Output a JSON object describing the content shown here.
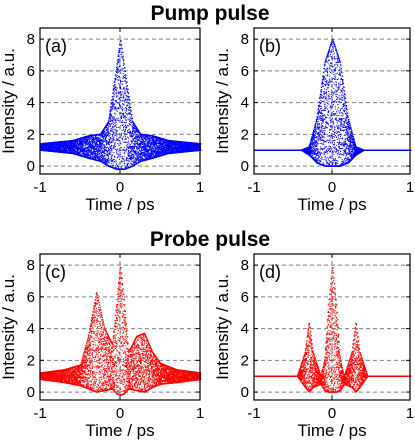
{
  "section_titles": {
    "top": "Pump pulse",
    "bottom": "Probe pulse"
  },
  "colors": {
    "pump": "#0000ff",
    "probe": "#ff0000",
    "grid": "#808080"
  },
  "chart_data": [
    {
      "type": "scatter",
      "panel": "(a)",
      "section": "Pump pulse",
      "xlabel": "Time / ps",
      "ylabel": "Intensity / a.u.",
      "xlim": [
        -1,
        1
      ],
      "ylim": [
        -0.5,
        8.7
      ],
      "xticks": [
        "-1",
        "0",
        "1"
      ],
      "yticks": [
        "0",
        "2",
        "4",
        "6",
        "8"
      ],
      "grid": "dashed horizontal at y ticks, dashed vertical at x = 0",
      "series": [
        {
          "color": "#0000ff",
          "envelope": {
            "x": [
              -1.0,
              -0.8,
              -0.6,
              -0.4,
              -0.25,
              -0.15,
              -0.05,
              0.0,
              0.05,
              0.15,
              0.25,
              0.4,
              0.6,
              0.8,
              1.0
            ],
            "upper": [
              1.4,
              1.5,
              1.6,
              1.9,
              2.0,
              2.8,
              6.2,
              8.0,
              6.2,
              2.8,
              2.0,
              1.9,
              1.6,
              1.5,
              1.4
            ],
            "lower": [
              1.0,
              0.9,
              0.8,
              0.5,
              0.3,
              0.0,
              -0.2,
              -0.2,
              -0.2,
              0.0,
              0.3,
              0.5,
              0.8,
              0.9,
              1.0
            ]
          }
        }
      ]
    },
    {
      "type": "scatter",
      "panel": "(b)",
      "section": "Pump pulse",
      "xlabel": "Time / ps",
      "ylabel": "Intensity / a.u.",
      "xlim": [
        -1,
        1
      ],
      "ylim": [
        -0.5,
        8.7
      ],
      "xticks": [
        "-1",
        "0",
        "1"
      ],
      "yticks": [
        "0",
        "2",
        "4",
        "6",
        "8"
      ],
      "grid": "dashed horizontal at y ticks, dashed vertical at x = 0",
      "series": [
        {
          "color": "#0000ff",
          "envelope": {
            "x": [
              -1.0,
              -0.4,
              -0.3,
              -0.2,
              -0.1,
              0.0,
              0.1,
              0.2,
              0.3,
              0.4,
              1.0
            ],
            "upper": [
              1.0,
              1.0,
              1.2,
              3.0,
              6.5,
              8.0,
              6.5,
              3.0,
              1.2,
              1.0,
              1.0
            ],
            "lower": [
              1.0,
              1.0,
              0.7,
              0.2,
              0.0,
              0.0,
              0.0,
              0.2,
              0.7,
              1.0,
              1.0
            ]
          }
        }
      ]
    },
    {
      "type": "scatter",
      "panel": "(c)",
      "section": "Probe pulse",
      "xlabel": "Time / ps",
      "ylabel": "Intensity / a.u.",
      "xlim": [
        -1,
        1
      ],
      "ylim": [
        -0.5,
        8.7
      ],
      "xticks": [
        "-1",
        "0",
        "1"
      ],
      "yticks": [
        "0",
        "2",
        "4",
        "6",
        "8"
      ],
      "grid": "dashed horizontal at y ticks, dashed vertical at x = 0",
      "series": [
        {
          "color": "#ff0000",
          "envelope": {
            "x": [
              -1.0,
              -0.7,
              -0.5,
              -0.4,
              -0.3,
              -0.2,
              -0.1,
              -0.05,
              0.0,
              0.05,
              0.1,
              0.2,
              0.3,
              0.4,
              0.5,
              0.7,
              1.0
            ],
            "upper": [
              1.2,
              1.4,
              1.7,
              3.5,
              6.3,
              4.0,
              3.0,
              5.5,
              8.0,
              5.5,
              2.5,
              3.5,
              3.7,
              2.5,
              1.8,
              1.4,
              1.2
            ],
            "lower": [
              0.8,
              0.6,
              0.4,
              0.2,
              0.0,
              0.1,
              0.2,
              -0.1,
              -0.2,
              -0.1,
              0.2,
              0.1,
              0.0,
              0.3,
              0.5,
              0.6,
              0.8
            ]
          }
        }
      ]
    },
    {
      "type": "scatter",
      "panel": "(d)",
      "section": "Probe pulse",
      "xlabel": "Time / ps",
      "ylabel": "Intensity / a.u.",
      "xlim": [
        -1,
        1
      ],
      "ylim": [
        -0.5,
        8.7
      ],
      "xticks": [
        "-1",
        "0",
        "1"
      ],
      "yticks": [
        "0",
        "2",
        "4",
        "6",
        "8"
      ],
      "grid": "dashed horizontal at y ticks, dashed vertical at x = 0",
      "series": [
        {
          "color": "#ff0000",
          "envelope": {
            "x": [
              -1.0,
              -0.45,
              -0.35,
              -0.3,
              -0.25,
              -0.15,
              -0.1,
              -0.05,
              0.0,
              0.05,
              0.1,
              0.15,
              0.25,
              0.3,
              0.35,
              0.45,
              1.0
            ],
            "upper": [
              1.0,
              1.0,
              2.5,
              4.4,
              2.5,
              1.0,
              2.0,
              5.5,
              8.0,
              5.5,
              2.0,
              1.0,
              2.5,
              4.4,
              2.5,
              1.0,
              1.0
            ],
            "lower": [
              1.0,
              1.0,
              0.3,
              0.0,
              0.3,
              0.5,
              0.1,
              0.0,
              0.0,
              0.0,
              0.1,
              0.5,
              0.3,
              0.0,
              0.3,
              1.0,
              1.0
            ]
          }
        }
      ]
    }
  ]
}
